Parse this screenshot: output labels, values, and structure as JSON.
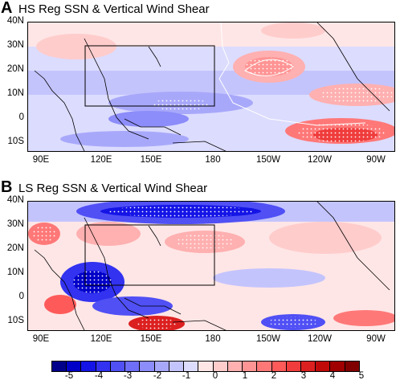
{
  "panels": [
    {
      "letter": "A",
      "title": "HS Reg SSN & Vertical Wind Shear"
    },
    {
      "letter": "B",
      "title": "LS Reg SSN & Vertical Wind Shear"
    }
  ],
  "lat_labels": [
    "40N",
    "30N",
    "20N",
    "10N",
    "0",
    "10S"
  ],
  "lon_labels": [
    "90E",
    "120E",
    "150E",
    "180",
    "150W",
    "120W",
    "90W"
  ],
  "colorbar": {
    "labels": [
      "-5",
      "-4",
      "-3",
      "-2",
      "-1",
      "0",
      "1",
      "2",
      "3",
      "4",
      "5"
    ],
    "colors": [
      "#00008b",
      "#0000c8",
      "#1414e6",
      "#3232f0",
      "#5050f5",
      "#6e6ef8",
      "#8c8cfa",
      "#a8a8fb",
      "#c4c4fd",
      "#dcdcfe",
      "#ffe6e6",
      "#ffcccc",
      "#ffb0b0",
      "#ff9494",
      "#ff7878",
      "#ff5a5a",
      "#f03c3c",
      "#dc2020",
      "#c00a0a",
      "#a00000",
      "#800000"
    ]
  }
}
